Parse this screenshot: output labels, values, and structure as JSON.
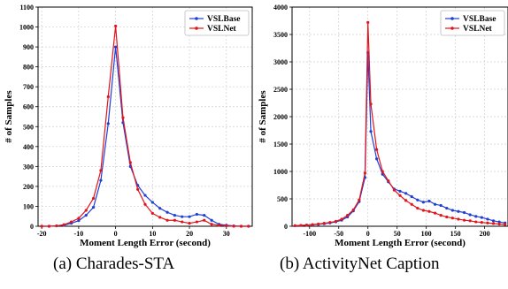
{
  "captions": [
    "(a)  Charades-STA",
    "(b)  ActivityNet Caption"
  ],
  "colors": {
    "series1": "#1f3fd6",
    "series2": "#e3151a"
  },
  "chart_data": [
    {
      "type": "line",
      "title": "",
      "xlabel": "Moment Length Error (second)",
      "ylabel": "# of Samples",
      "xlim": [
        -21,
        37
      ],
      "ylim": [
        0,
        1100
      ],
      "xticks": [
        -20,
        -10,
        0,
        10,
        20,
        30
      ],
      "yticks": [
        0,
        100,
        200,
        300,
        400,
        500,
        600,
        700,
        800,
        900,
        1000,
        1100
      ],
      "grid": true,
      "legend": "top-right",
      "series": [
        {
          "name": "VSLBase",
          "color": "#1f3fd6",
          "x": [
            -20,
            -18,
            -16,
            -14,
            -12,
            -10,
            -8,
            -6,
            -4,
            -2,
            0,
            2,
            4,
            6,
            8,
            10,
            12,
            14,
            16,
            18,
            20,
            22,
            24,
            26,
            28,
            30,
            32,
            34,
            36
          ],
          "y": [
            0,
            0,
            2,
            5,
            15,
            28,
            55,
            95,
            230,
            515,
            900,
            520,
            300,
            205,
            155,
            120,
            90,
            70,
            55,
            48,
            48,
            60,
            55,
            30,
            10,
            5,
            2,
            0,
            0
          ]
        },
        {
          "name": "VSLNet",
          "color": "#e3151a",
          "x": [
            -20,
            -18,
            -16,
            -14,
            -12,
            -10,
            -8,
            -6,
            -4,
            -2,
            0,
            2,
            4,
            6,
            8,
            10,
            12,
            14,
            16,
            18,
            20,
            22,
            24,
            26,
            28,
            30,
            32,
            34,
            36
          ],
          "y": [
            0,
            0,
            2,
            8,
            22,
            40,
            80,
            140,
            280,
            650,
            1005,
            545,
            320,
            185,
            110,
            65,
            45,
            30,
            30,
            22,
            15,
            22,
            30,
            10,
            5,
            2,
            0,
            0,
            0
          ]
        }
      ]
    },
    {
      "type": "line",
      "title": "",
      "xlabel": "Moment Length Error (second)",
      "ylabel": "# of Samples",
      "xlim": [
        -130,
        240
      ],
      "ylim": [
        0,
        4000
      ],
      "xticks": [
        -100,
        -50,
        0,
        50,
        100,
        150,
        200
      ],
      "yticks": [
        0,
        500,
        1000,
        1500,
        2000,
        2500,
        3000,
        3500,
        4000
      ],
      "grid": true,
      "legend": "top-right",
      "series": [
        {
          "name": "VSLBase",
          "color": "#1f3fd6",
          "x": [
            -125,
            -115,
            -105,
            -95,
            -85,
            -75,
            -65,
            -55,
            -45,
            -35,
            -25,
            -15,
            -5,
            0,
            5,
            15,
            25,
            35,
            45,
            55,
            65,
            75,
            85,
            95,
            105,
            115,
            125,
            135,
            145,
            155,
            165,
            175,
            185,
            195,
            205,
            215,
            225,
            235
          ],
          "y": [
            10,
            15,
            20,
            25,
            35,
            45,
            60,
            80,
            110,
            170,
            280,
            450,
            890,
            3170,
            1730,
            1230,
            950,
            810,
            680,
            640,
            600,
            540,
            480,
            440,
            460,
            400,
            380,
            330,
            290,
            270,
            250,
            210,
            180,
            160,
            130,
            100,
            80,
            60
          ]
        },
        {
          "name": "VSLNet",
          "color": "#e3151a",
          "x": [
            -125,
            -115,
            -105,
            -95,
            -85,
            -75,
            -65,
            -55,
            -45,
            -35,
            -25,
            -15,
            -5,
            0,
            5,
            15,
            25,
            35,
            45,
            55,
            65,
            75,
            85,
            95,
            105,
            115,
            125,
            135,
            145,
            155,
            165,
            175,
            185,
            195,
            205,
            215,
            225,
            235
          ],
          "y": [
            10,
            15,
            20,
            30,
            40,
            55,
            70,
            90,
            130,
            200,
            300,
            480,
            970,
            3720,
            2230,
            1400,
            1000,
            830,
            660,
            560,
            470,
            400,
            330,
            290,
            270,
            240,
            200,
            170,
            150,
            130,
            110,
            100,
            80,
            70,
            60,
            50,
            40,
            30
          ]
        }
      ]
    }
  ]
}
